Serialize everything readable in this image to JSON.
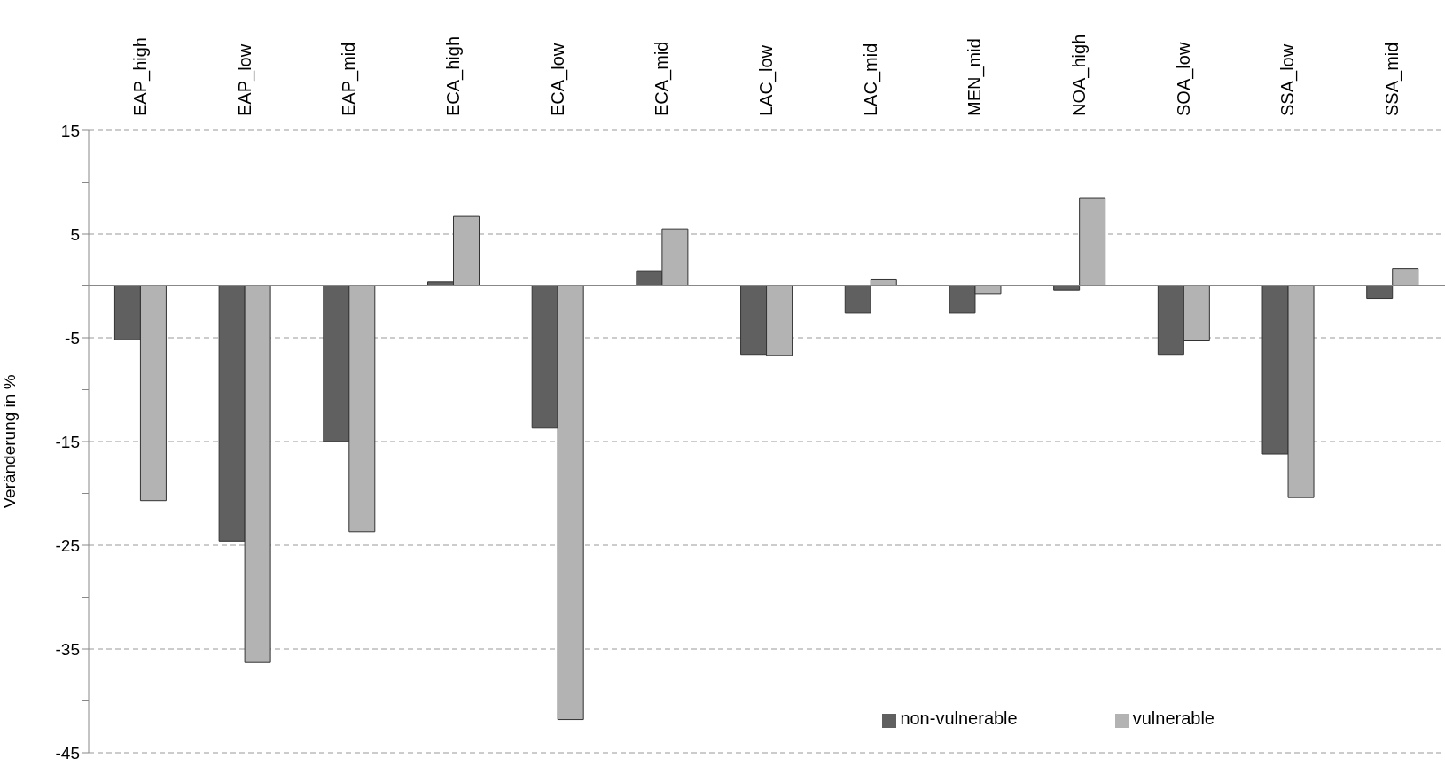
{
  "chart_data": {
    "type": "bar",
    "ylabel": "Veränderung in %",
    "categories": [
      "EAP_high",
      "EAP_low",
      "EAP_mid",
      "ECA_high",
      "ECA_low",
      "ECA_mid",
      "LAC_low",
      "LAC_mid",
      "MEN_mid",
      "NOA_high",
      "SOA_low",
      "SSA_low",
      "SSA_mid"
    ],
    "series": [
      {
        "name": "non-vulnerable",
        "color": "#606060",
        "values": [
          -5.2,
          -24.6,
          -15.0,
          0.4,
          -13.7,
          1.4,
          -6.6,
          -2.6,
          -2.6,
          -0.4,
          -6.6,
          -16.2,
          -1.2
        ]
      },
      {
        "name": "vulnerable",
        "color": "#b3b3b3",
        "values": [
          -20.7,
          -36.3,
          -23.7,
          6.7,
          -41.8,
          5.5,
          -6.7,
          0.6,
          -0.8,
          8.5,
          -5.3,
          -20.4,
          1.7
        ]
      }
    ],
    "ylim": [
      -45,
      15
    ],
    "yticks": [
      15,
      {
        "value": 10,
        "label": null
      },
      5,
      {
        "value": 0,
        "label": null
      },
      -5,
      {
        "value": -10,
        "label": null
      },
      -15,
      {
        "value": -20,
        "label": null
      },
      -25,
      {
        "value": -30,
        "label": null
      },
      -35,
      {
        "value": -40,
        "label": null
      },
      -45
    ],
    "grid": "y",
    "legend": "bottom right",
    "line_style": "dashed"
  }
}
